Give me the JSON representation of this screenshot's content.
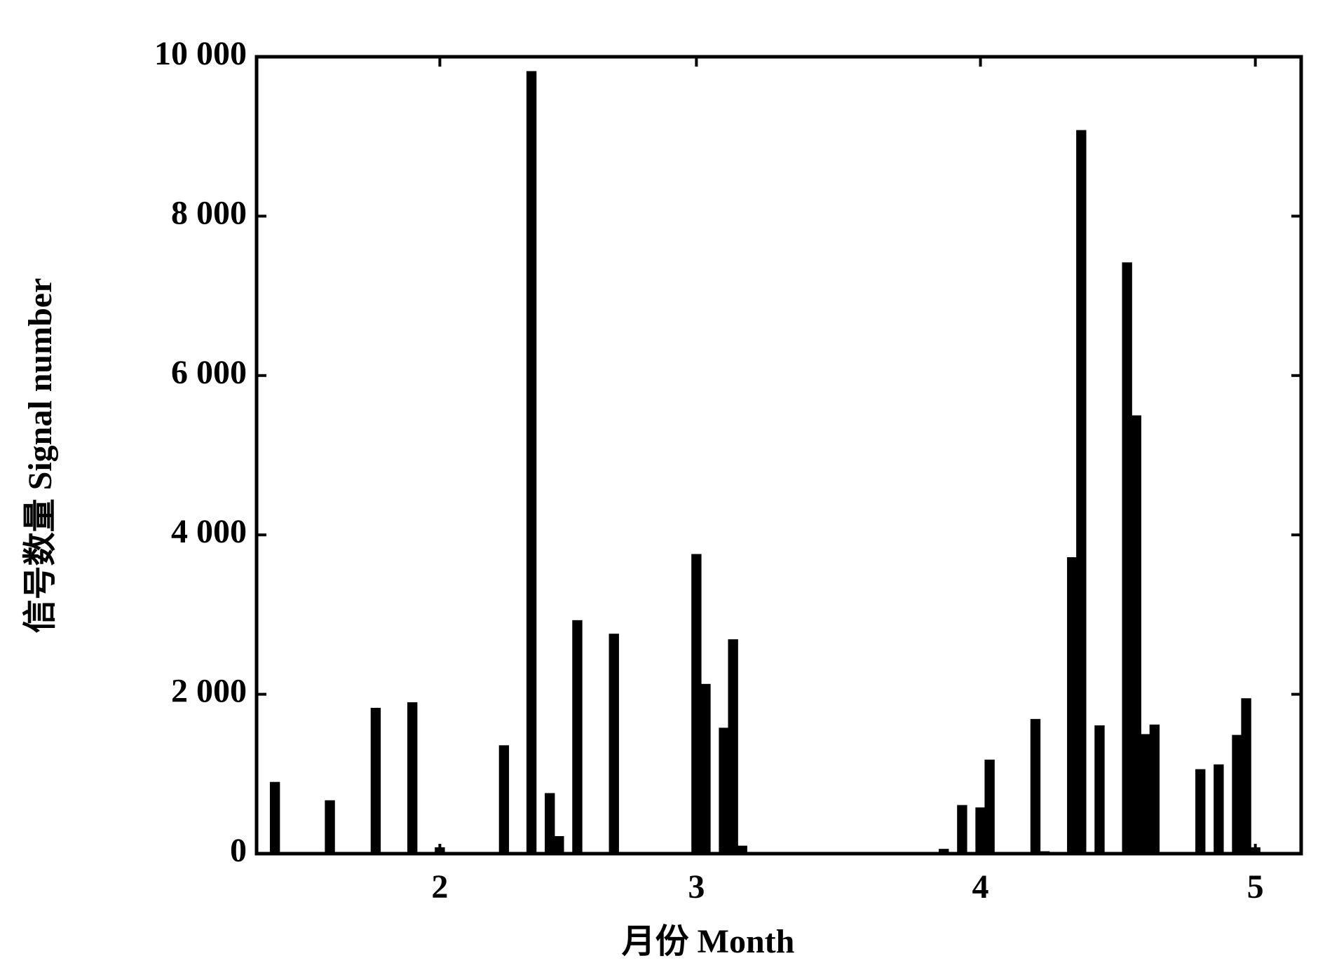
{
  "chart_data": {
    "type": "bar",
    "x_label": "月份 Month",
    "y_label": "信号数量 Signal number",
    "x": [
      14,
      20,
      25,
      29,
      32,
      39,
      42,
      44,
      45,
      47,
      51,
      55,
      60,
      61,
      63,
      64,
      65,
      87,
      89,
      91,
      92,
      94,
      97,
      98,
      101,
      102,
      104,
      107,
      108,
      109,
      110,
      115,
      117,
      119,
      120,
      121
    ],
    "values": [
      900,
      670,
      1830,
      1900,
      80,
      1360,
      9820,
      760,
      220,
      2930,
      2760,
      20,
      3760,
      2130,
      1580,
      2690,
      100,
      60,
      610,
      580,
      1180,
      10,
      1690,
      30,
      3720,
      9080,
      1610,
      7420,
      5500,
      1500,
      1620,
      1060,
      1120,
      1490,
      1950,
      80
    ],
    "color": "#000000",
    "xlim": [
      12,
      126
    ],
    "xticks": [
      {
        "value": 32,
        "label": "2"
      },
      {
        "value": 60,
        "label": "3"
      },
      {
        "value": 91,
        "label": "4"
      },
      {
        "value": 121,
        "label": "5"
      }
    ],
    "ylim": [
      0,
      10000
    ],
    "yticks": [
      0,
      {
        "value": 2000,
        "label": "2 000"
      },
      {
        "value": 4000,
        "label": "4 000"
      },
      {
        "value": 6000,
        "label": "6 000"
      },
      {
        "value": 8000,
        "label": "8 000"
      },
      {
        "value": 10000,
        "label": "10 000"
      }
    ],
    "grid": false
  }
}
